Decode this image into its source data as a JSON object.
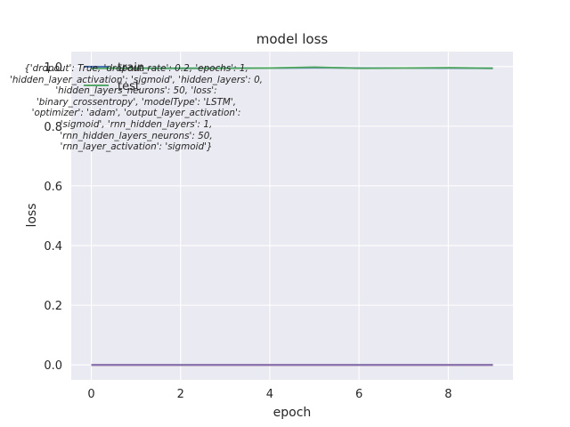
{
  "chart_data": {
    "type": "line",
    "title": "model loss",
    "xlabel": "epoch",
    "ylabel": "loss",
    "x": [
      0,
      1,
      2,
      3,
      4,
      5,
      6,
      7,
      8,
      9
    ],
    "xlim": [
      -0.45,
      9.45
    ],
    "ylim": [
      -0.05,
      1.05
    ],
    "xticks": [
      0,
      2,
      4,
      6,
      8
    ],
    "yticks": [
      0.0,
      0.2,
      0.4,
      0.6,
      0.8,
      1.0
    ],
    "xtick_labels": [
      "0",
      "2",
      "4",
      "6",
      "8"
    ],
    "ytick_labels": [
      "0.0",
      "0.2",
      "0.4",
      "0.6",
      "0.8",
      "1.0"
    ],
    "grid": true,
    "legend_position": "top-left",
    "series": [
      {
        "name": "train",
        "color": "#4c72b0",
        "values": [
          0.995,
          0.995,
          0.994,
          0.995,
          0.995,
          0.996,
          0.995,
          0.995,
          0.995,
          0.994
        ]
      },
      {
        "name": "test",
        "color": "#55a868",
        "values": [
          0.994,
          0.994,
          0.994,
          0.994,
          0.995,
          0.998,
          0.994,
          0.995,
          0.996,
          0.994
        ]
      },
      {
        "name": "",
        "color": "#c44e52",
        "values": [
          0,
          0,
          0,
          0,
          0,
          0,
          0,
          0,
          0,
          0
        ]
      },
      {
        "name": "",
        "color": "#8172b2",
        "values": [
          0,
          0,
          0,
          0,
          0,
          0,
          0,
          0,
          0,
          0
        ]
      }
    ],
    "annotation": "{'dropout': True, 'dropout_rate': 0.2, 'epochs': 1,\n'hidden_layer_activation': 'sigmoid', 'hidden_layers': 0,\n'hidden_layers_neurons': 50, 'loss':\n'binary_crossentropy', 'modelType': 'LSTM',\n'optimizer': 'adam', 'output_layer_activation':\n'sigmoid', 'rnn_hidden_layers': 1,\n'rnn_hidden_layers_neurons': 50,\n'rnn_layer_activation': 'sigmoid'}"
  }
}
